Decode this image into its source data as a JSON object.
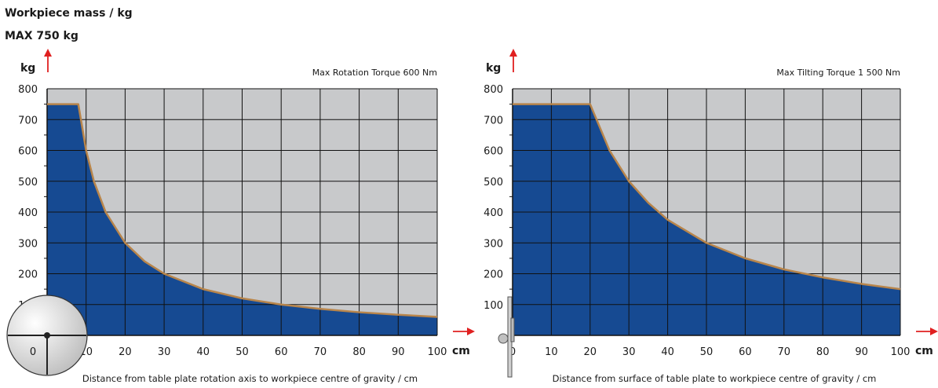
{
  "header": {
    "title": "Workpiece mass / kg",
    "max_label": "MAX 750 kg"
  },
  "colors": {
    "fill": "#164a92",
    "background": "#c8c9cb",
    "curve": "#b8854b",
    "arrow": "#e02020"
  },
  "chart_data": [
    {
      "type": "area",
      "title": "Max Rotation Torque 600 Nm",
      "ylabel": "kg",
      "xlabel": "cm",
      "caption": "Distance from table plate rotation axis to workpiece centre of gravity / cm",
      "xlim": [
        0,
        100
      ],
      "ylim": [
        0,
        800
      ],
      "x_ticks": [
        "0",
        "10",
        "20",
        "30",
        "40",
        "50",
        "60",
        "70",
        "80",
        "90",
        "100"
      ],
      "y_ticks": [
        "100",
        "200",
        "300",
        "400",
        "500",
        "600",
        "700",
        "800"
      ],
      "grid": true,
      "x": [
        0,
        8,
        10,
        12,
        15,
        20,
        25,
        30,
        40,
        50,
        60,
        70,
        80,
        90,
        100
      ],
      "y": [
        750,
        750,
        600,
        500,
        400,
        300,
        240,
        200,
        150,
        120,
        100,
        86,
        75,
        67,
        60
      ]
    },
    {
      "type": "area",
      "title": "Max Tilting Torque 1 500 Nm",
      "ylabel": "kg",
      "xlabel": "cm",
      "caption": "Distance from surface of table plate to workpiece centre of gravity / cm",
      "xlim": [
        0,
        100
      ],
      "ylim": [
        0,
        800
      ],
      "x_ticks": [
        "0",
        "10",
        "20",
        "30",
        "40",
        "50",
        "60",
        "70",
        "80",
        "90",
        "100"
      ],
      "y_ticks": [
        "100",
        "200",
        "300",
        "400",
        "500",
        "600",
        "700",
        "800"
      ],
      "grid": true,
      "x": [
        0,
        20,
        25,
        30,
        35,
        40,
        50,
        60,
        70,
        80,
        90,
        100
      ],
      "y": [
        750,
        750,
        600,
        500,
        430,
        375,
        300,
        250,
        214,
        188,
        167,
        150
      ]
    }
  ]
}
